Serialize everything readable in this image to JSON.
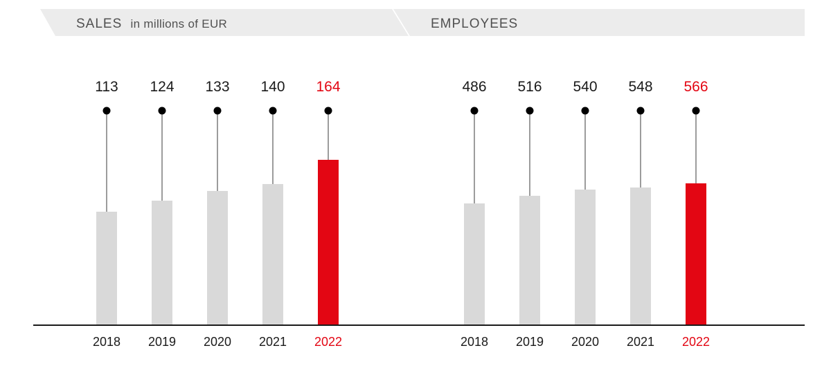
{
  "colors": {
    "bar": "#d9d9d9",
    "highlight": "#e30613",
    "header_bg": "#ececec",
    "text": "#1a1a1a",
    "header_text": "#505050"
  },
  "chart_data": [
    {
      "type": "bar",
      "title": "SALES",
      "subtitle": "in millions of EUR",
      "categories": [
        "2018",
        "2019",
        "2020",
        "2021",
        "2022"
      ],
      "values": [
        113,
        124,
        133,
        140,
        164
      ],
      "highlight_index": 4
    },
    {
      "type": "bar",
      "title": "EMPLOYEES",
      "subtitle": "",
      "categories": [
        "2018",
        "2019",
        "2020",
        "2021",
        "2022"
      ],
      "values": [
        486,
        516,
        540,
        548,
        566
      ],
      "highlight_index": 4
    }
  ]
}
